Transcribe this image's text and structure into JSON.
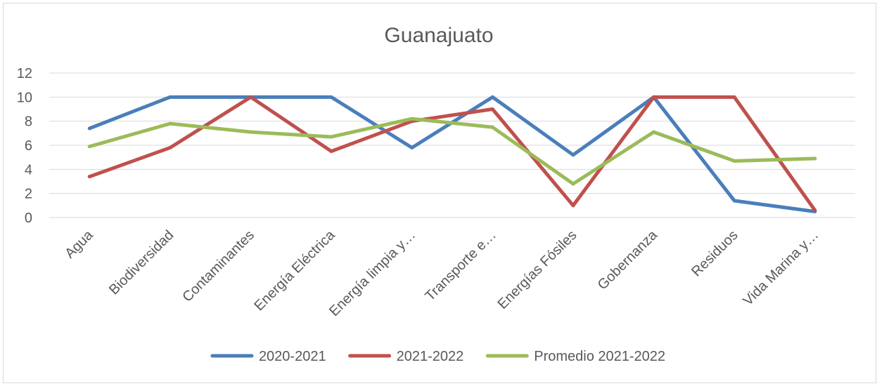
{
  "chart_data": {
    "type": "line",
    "title": "Guanajuato",
    "xlabel": "",
    "ylabel": "",
    "ylim": [
      0,
      12
    ],
    "yticks": [
      0,
      2,
      4,
      6,
      8,
      10,
      12
    ],
    "grid": true,
    "legend_position": "bottom",
    "categories": [
      "Agua",
      "Biodiversidad",
      "Contaminantes",
      "Energía Eléctrica",
      "Energía limpia y…",
      "Transporte e…",
      "Energías Fósiles",
      "Gobernanza",
      "Residuos",
      "Vida Marina y…"
    ],
    "series": [
      {
        "name": "2020-2021",
        "color": "#4a7ebb",
        "values": [
          7.4,
          10,
          10,
          10,
          5.8,
          10,
          5.2,
          10,
          1.4,
          0.5
        ]
      },
      {
        "name": "2021-2022",
        "color": "#c0504d",
        "values": [
          3.4,
          5.8,
          10,
          5.5,
          8,
          9,
          1,
          10,
          10,
          0.6
        ]
      },
      {
        "name": "Promedio 2021-2022",
        "color": "#9bbb59",
        "values": [
          5.9,
          7.8,
          7.1,
          6.7,
          8.2,
          7.5,
          2.8,
          7.1,
          4.7,
          4.9
        ]
      }
    ]
  }
}
